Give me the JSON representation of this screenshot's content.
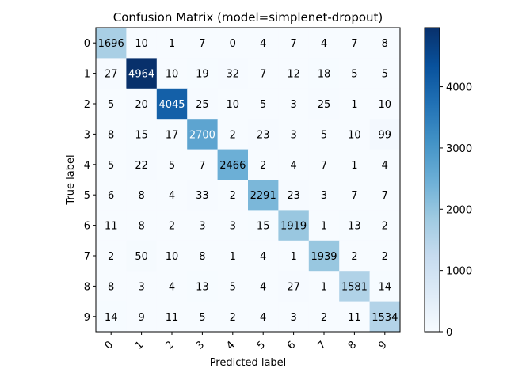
{
  "chart_data": {
    "type": "heatmap",
    "title": "Confusion Matrix (model=simplenet-dropout)",
    "xlabel": "Predicted label",
    "ylabel": "True label",
    "x_categories": [
      "0",
      "1",
      "2",
      "3",
      "4",
      "5",
      "6",
      "7",
      "8",
      "9"
    ],
    "y_categories": [
      "0",
      "1",
      "2",
      "3",
      "4",
      "5",
      "6",
      "7",
      "8",
      "9"
    ],
    "matrix": [
      [
        1696,
        10,
        1,
        7,
        0,
        4,
        7,
        4,
        7,
        8
      ],
      [
        27,
        4964,
        10,
        19,
        32,
        7,
        12,
        18,
        5,
        5
      ],
      [
        5,
        20,
        4045,
        25,
        10,
        5,
        3,
        25,
        1,
        10
      ],
      [
        8,
        15,
        17,
        2700,
        2,
        23,
        3,
        5,
        10,
        99
      ],
      [
        5,
        22,
        5,
        7,
        2466,
        2,
        4,
        7,
        1,
        4
      ],
      [
        6,
        8,
        4,
        33,
        2,
        2291,
        23,
        3,
        7,
        7
      ],
      [
        11,
        8,
        2,
        3,
        3,
        15,
        1919,
        1,
        13,
        2
      ],
      [
        2,
        50,
        10,
        8,
        1,
        4,
        1,
        1939,
        2,
        2
      ],
      [
        8,
        3,
        4,
        13,
        5,
        4,
        27,
        1,
        1581,
        14
      ],
      [
        14,
        9,
        11,
        5,
        2,
        4,
        3,
        2,
        11,
        1534
      ]
    ],
    "colormap": "Blues",
    "vmin": 0,
    "vmax": 4964,
    "colorbar_ticks": [
      "0",
      "1000",
      "2000",
      "3000",
      "4000"
    ],
    "colorbar_tick_values": [
      0,
      1000,
      2000,
      3000,
      4000
    ],
    "x_tick_rotation_deg": 45
  }
}
